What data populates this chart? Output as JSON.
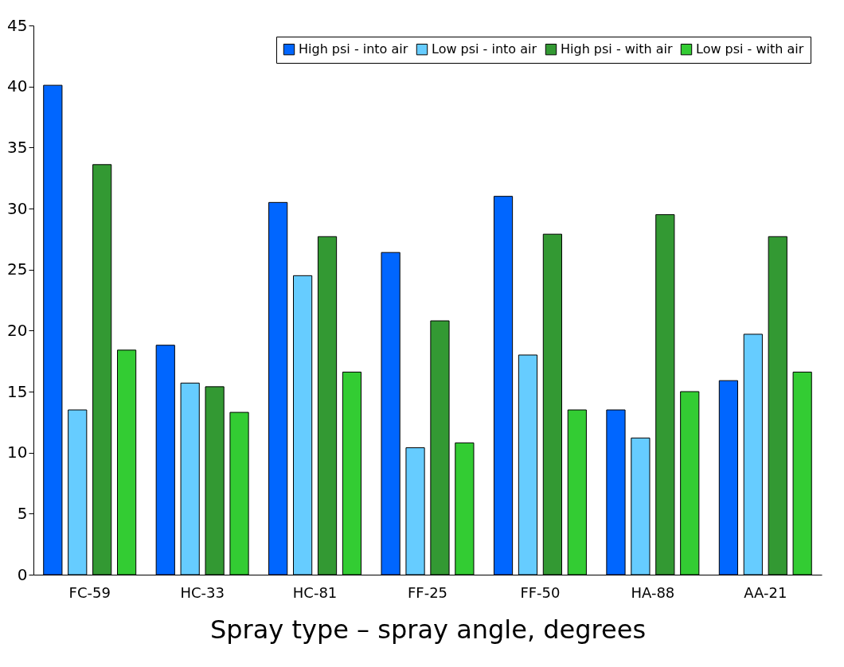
{
  "chart_data": {
    "type": "bar",
    "xlabel": "Spray type – spray angle, degrees",
    "categories": [
      "FC-59",
      "HC-33",
      "HC-81",
      "FF-25",
      "FF-50",
      "HA-88",
      "AA-21"
    ],
    "series": [
      {
        "name": "High psi - into air",
        "color": "#0066ff",
        "values": [
          40.1,
          18.8,
          30.5,
          26.4,
          31.0,
          13.5,
          15.9
        ]
      },
      {
        "name": "Low psi - into air",
        "color": "#66ccff",
        "values": [
          13.5,
          15.7,
          24.5,
          10.4,
          18.0,
          11.2,
          19.7
        ]
      },
      {
        "name": "High psi - with air",
        "color": "#339933",
        "values": [
          33.6,
          15.4,
          27.7,
          20.8,
          27.9,
          29.5,
          27.7
        ]
      },
      {
        "name": "Low psi - with air",
        "color": "#33cc33",
        "values": [
          18.4,
          13.3,
          16.6,
          10.8,
          13.5,
          15.0,
          16.6
        ]
      }
    ],
    "ylim": [
      0,
      45
    ],
    "yticks": [
      0,
      5,
      10,
      15,
      20,
      25,
      30,
      35,
      40,
      45
    ],
    "grid": false,
    "legend": "top right"
  }
}
